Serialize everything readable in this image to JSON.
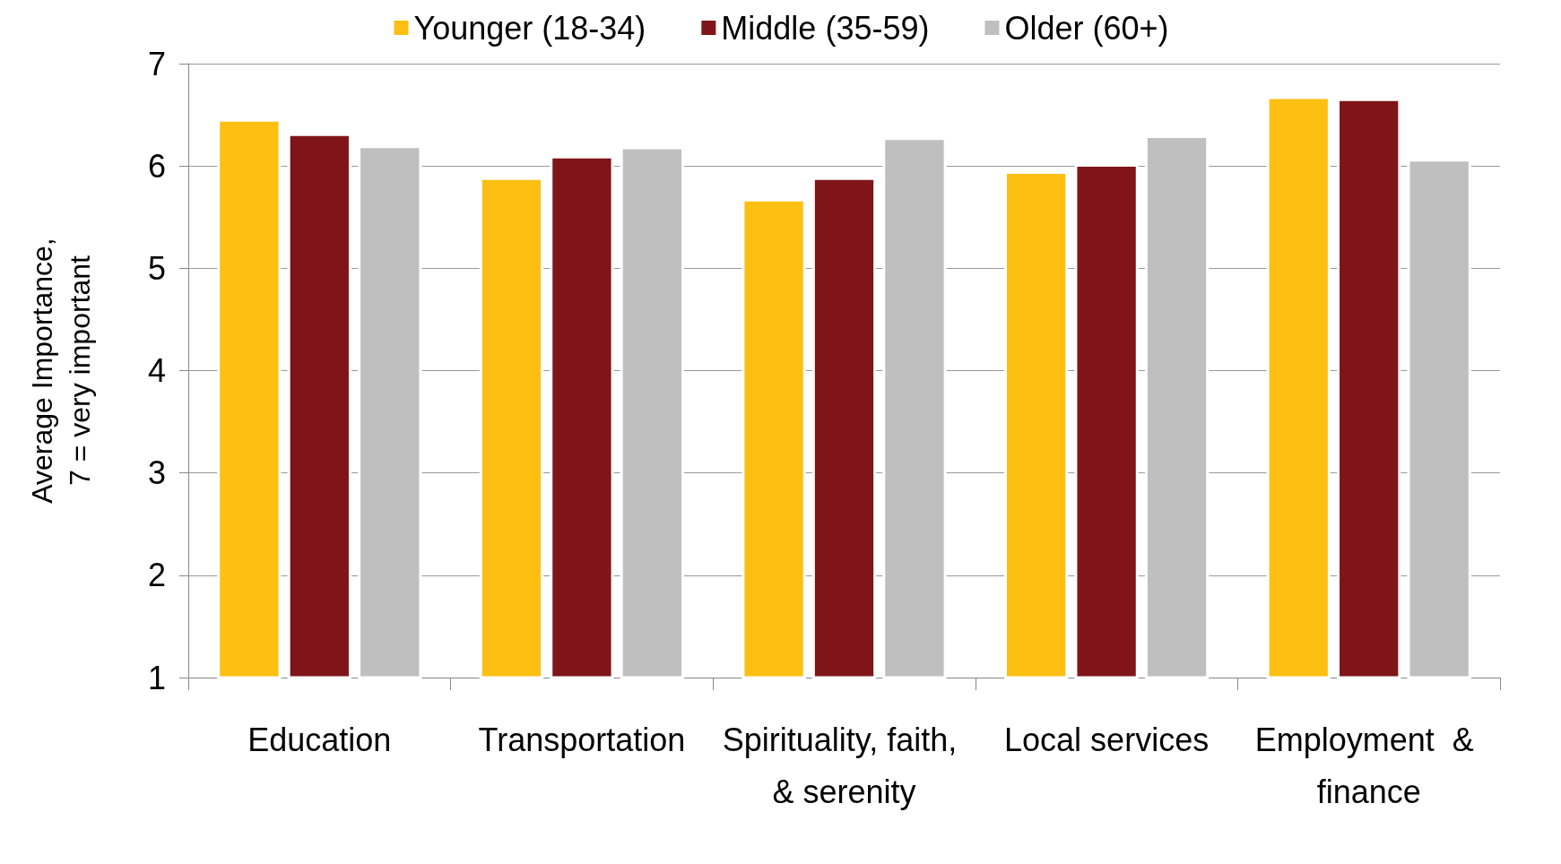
{
  "chart_data": {
    "type": "bar",
    "ylabel": "Average Importance,\n7 = very important",
    "categories": [
      "Education",
      "Transportation",
      "Spirituality, faith, & serenity",
      "Local services",
      "Employment  & finance"
    ],
    "series": [
      {
        "name": "Younger (18-34)",
        "color": "#fcbf12",
        "values": [
          6.46,
          5.89,
          5.68,
          5.95,
          6.68
        ]
      },
      {
        "name": "Middle (35-59)",
        "color": "#7f1518",
        "values": [
          6.32,
          6.1,
          5.89,
          6.02,
          6.66
        ]
      },
      {
        "name": "Older (60+)",
        "color": "#bfbfbf",
        "values": [
          6.2,
          6.19,
          6.28,
          6.3,
          6.07
        ]
      }
    ],
    "ylim": [
      1,
      7
    ],
    "yticks": [
      1,
      2,
      3,
      4,
      5,
      6,
      7
    ],
    "grid": "y",
    "legend": "top"
  }
}
